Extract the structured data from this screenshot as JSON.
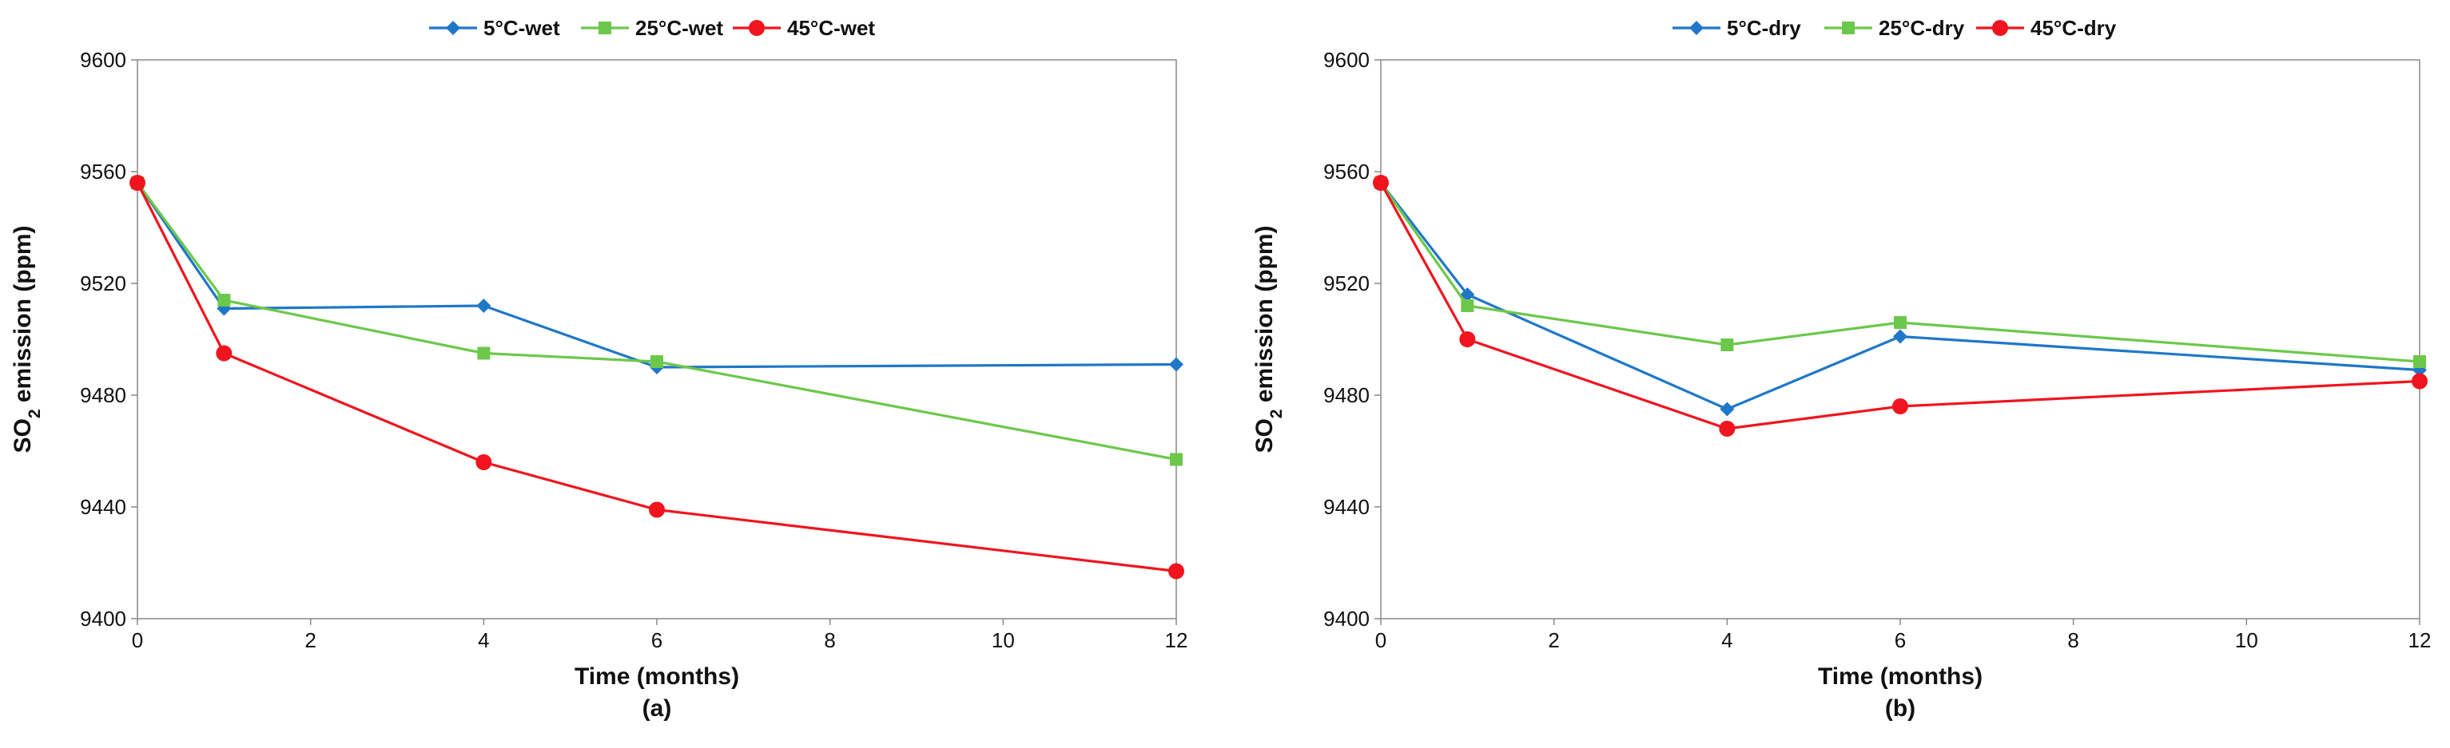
{
  "chart_data": [
    {
      "type": "line",
      "panel_label": "(a)",
      "xlabel": "Time (months)",
      "ylabel": {
        "prefix": "SO",
        "subscript": "2",
        "suffix": " emission (ppm)"
      },
      "xlim": [
        0,
        12
      ],
      "ylim": [
        9400,
        9600
      ],
      "xticks": [
        0,
        2,
        4,
        6,
        8,
        10,
        12
      ],
      "yticks": [
        9400,
        9440,
        9480,
        9520,
        9560,
        9600
      ],
      "legend_position": "top-center",
      "series": [
        {
          "name": "5°C-wet",
          "color": "#1f77c8",
          "marker": "diamond",
          "x": [
            0,
            1,
            4,
            6,
            12
          ],
          "y": [
            9556,
            9511,
            9512,
            9490,
            9491
          ]
        },
        {
          "name": "25°C-wet",
          "color": "#6cc84a",
          "marker": "square",
          "x": [
            0,
            1,
            4,
            6,
            12
          ],
          "y": [
            9556,
            9514,
            9495,
            9492,
            9457
          ]
        },
        {
          "name": "45°C-wet",
          "color": "#f0141e",
          "marker": "circle",
          "x": [
            0,
            1,
            4,
            6,
            12
          ],
          "y": [
            9556,
            9495,
            9456,
            9439,
            9417
          ]
        }
      ]
    },
    {
      "type": "line",
      "panel_label": "(b)",
      "xlabel": "Time (months)",
      "ylabel": {
        "prefix": "SO",
        "subscript": "2",
        "suffix": " emission (ppm)"
      },
      "xlim": [
        0,
        12
      ],
      "ylim": [
        9400,
        9600
      ],
      "xticks": [
        0,
        2,
        4,
        6,
        8,
        10,
        12
      ],
      "yticks": [
        9400,
        9440,
        9480,
        9520,
        9560,
        9600
      ],
      "legend_position": "top-center",
      "series": [
        {
          "name": "5°C-dry",
          "color": "#1f77c8",
          "marker": "diamond",
          "x": [
            0,
            1,
            4,
            6,
            12
          ],
          "y": [
            9556,
            9516,
            9475,
            9501,
            9489
          ]
        },
        {
          "name": "25°C-dry",
          "color": "#6cc84a",
          "marker": "square",
          "x": [
            0,
            1,
            4,
            6,
            12
          ],
          "y": [
            9556,
            9512,
            9498,
            9506,
            9492
          ]
        },
        {
          "name": "45°C-dry",
          "color": "#f0141e",
          "marker": "circle",
          "x": [
            0,
            1,
            4,
            6,
            12
          ],
          "y": [
            9556,
            9500,
            9468,
            9476,
            9485
          ]
        }
      ]
    }
  ]
}
